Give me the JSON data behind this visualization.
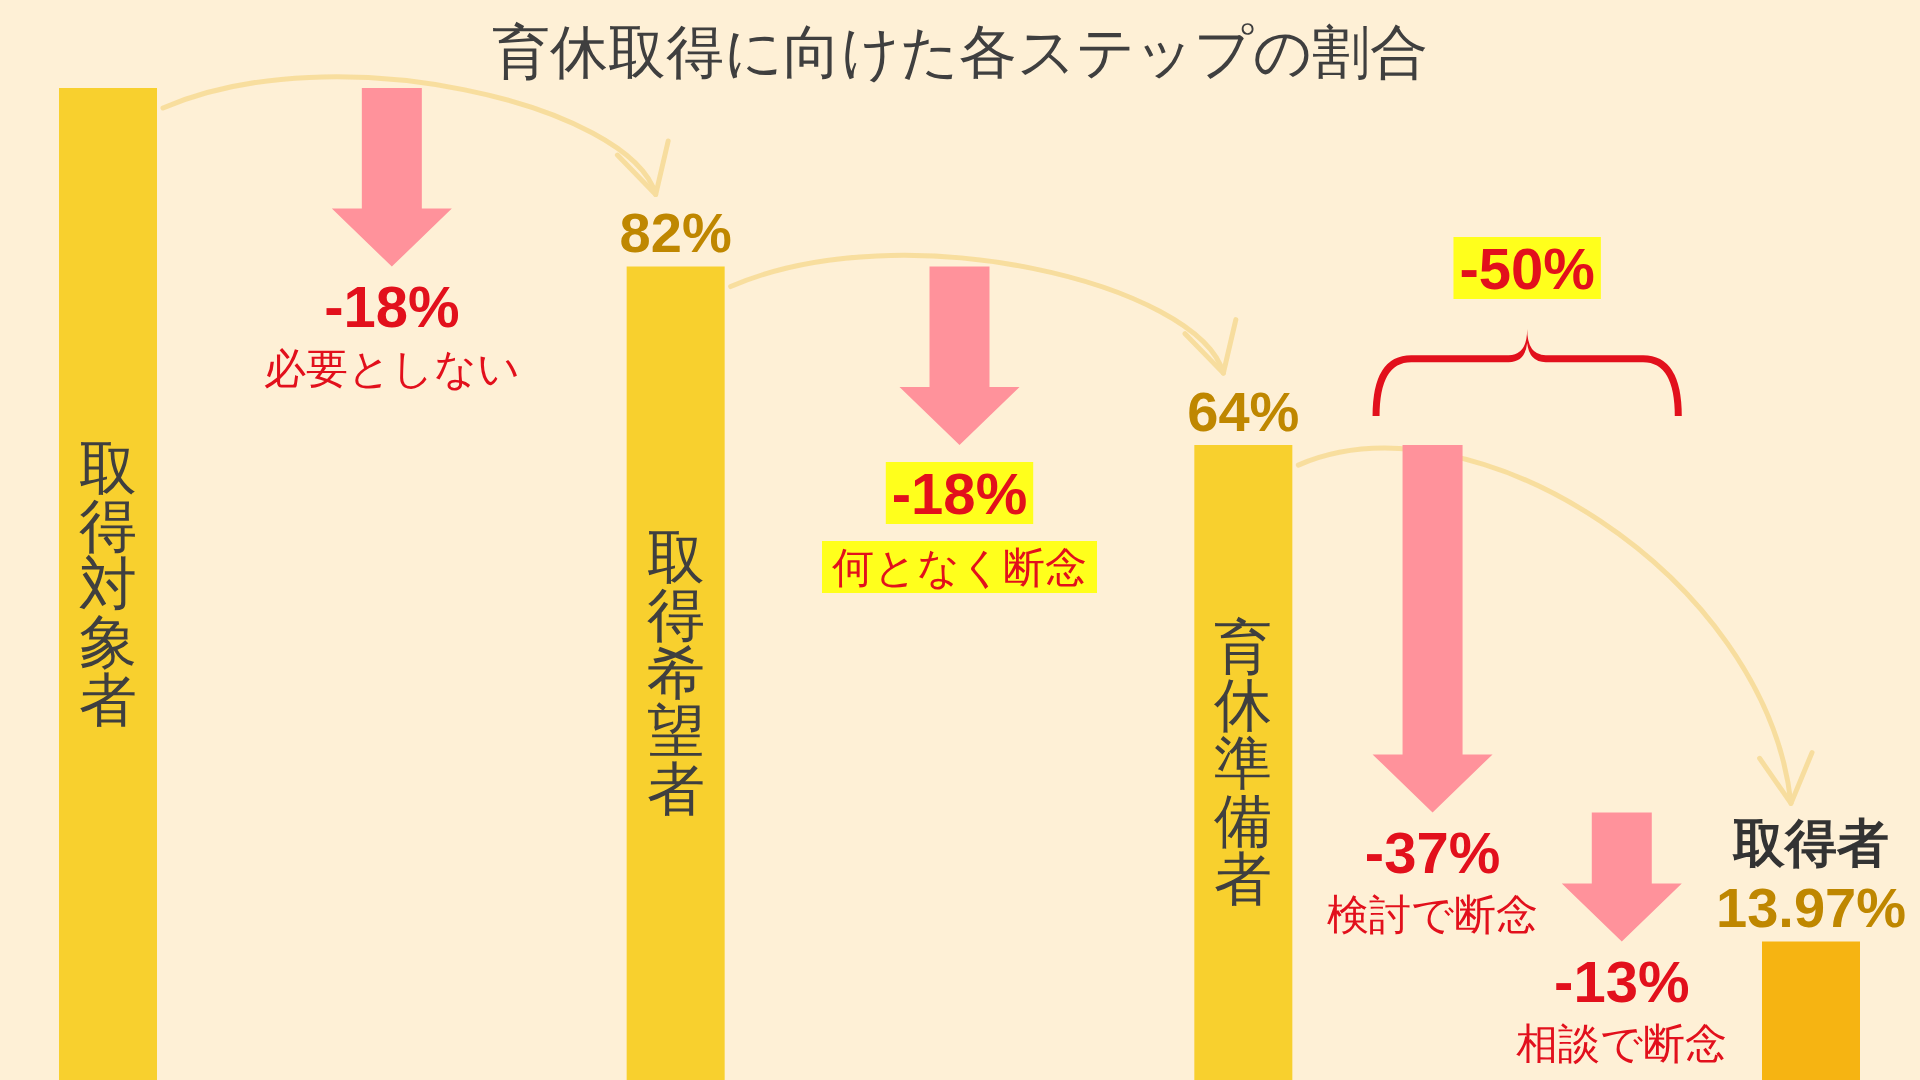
{
  "chart_data": {
    "type": "bar",
    "title": "育休取得に向けた各ステップの割合",
    "categories": [
      "取得対象者",
      "取得希望者",
      "育休準備者",
      "取得者"
    ],
    "values": [
      100,
      82,
      64,
      13.97
    ],
    "colors": [
      "#f8d02e",
      "#f8d02e",
      "#f8d02e",
      "#f6b412"
    ],
    "value_labels": [
      null,
      "82%",
      "64%",
      "13.97%"
    ],
    "annotations": [
      "-18%",
      "必要としない",
      "-18%",
      "何となく断念",
      "-50%",
      "-37%",
      "検討で断念",
      "-13%",
      "相談で断念"
    ]
  }
}
